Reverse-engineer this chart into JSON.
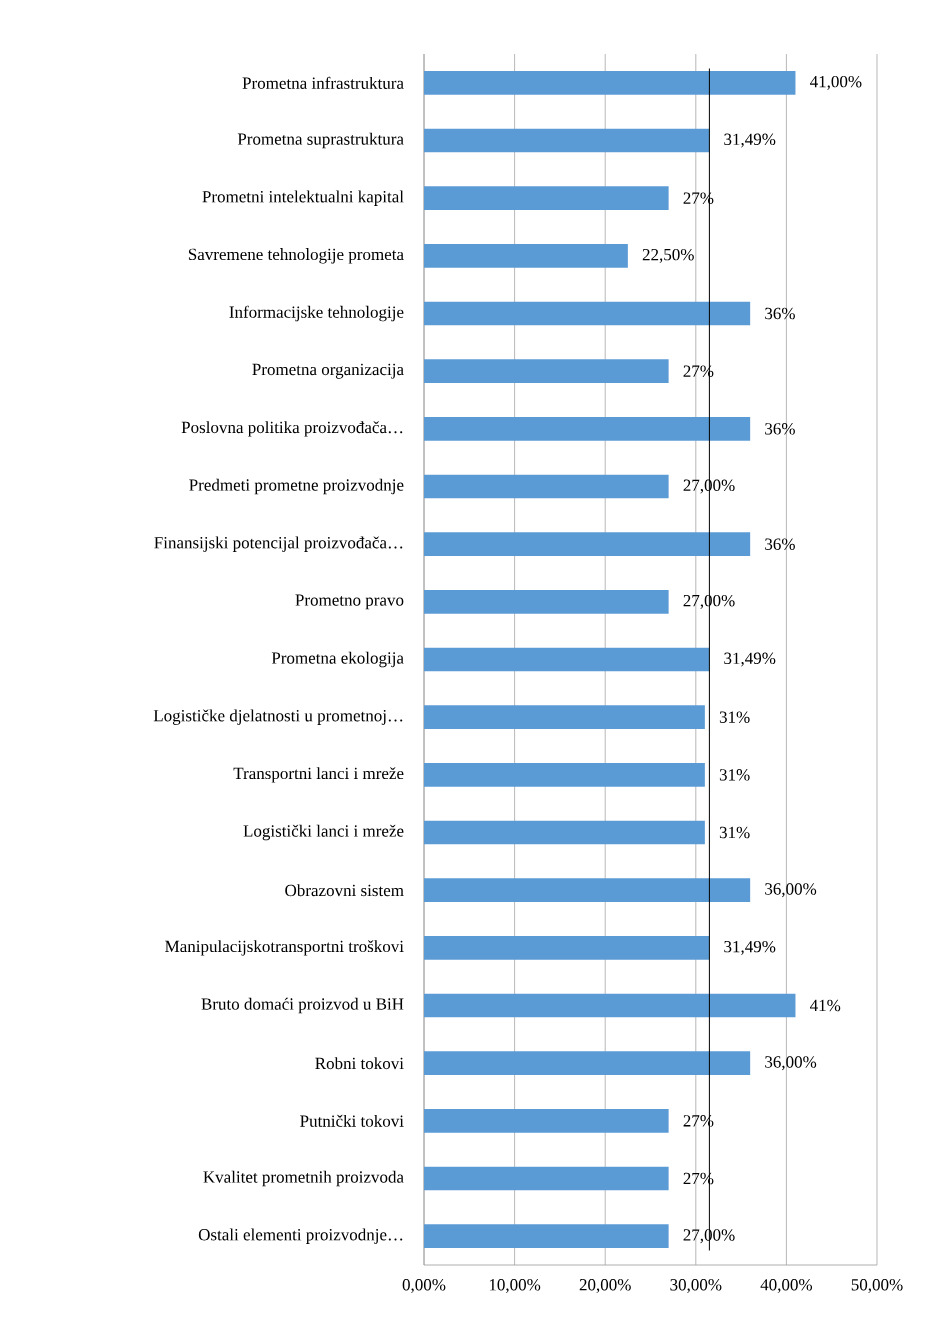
{
  "chart_data": {
    "type": "bar",
    "orientation": "horizontal",
    "categories": [
      "Prometna infrastruktura",
      "Prometna suprastruktura",
      "Prometni intelektualni kapital",
      "Savremene tehnologije prometa",
      "Informacijske tehnologije",
      "Prometna organizacija",
      "Poslovna politika proizvođača…",
      "Predmeti prometne proizvodnje",
      "Finansijski potencijal proizvođača…",
      "Prometno pravo",
      "Prometna ekologija",
      "Logističke djelatnosti u prometnoj…",
      "Transportni lanci i mreže",
      "Logistički lanci i mreže",
      "Obrazovni sistem",
      "Manipulacijskotransportni troškovi",
      "Bruto domaći proizvod u BiH",
      "Robni tokovi",
      "Putnički tokovi",
      "Kvalitet prometnih proizvoda",
      "Ostali elementi proizvodnje…"
    ],
    "values": [
      41,
      31.49,
      27,
      22.5,
      36,
      27,
      36,
      27,
      36,
      27,
      31.49,
      31,
      31,
      31,
      36,
      31.49,
      41,
      36,
      27,
      27,
      27
    ],
    "value_labels": [
      "41,00%",
      "31,49%",
      "27%",
      "22,50%",
      "36%",
      "27%",
      "36%",
      "27,00%",
      "36%",
      "27,00%",
      "31,49%",
      "31%",
      "31%",
      "31%",
      "36,00%",
      "31,49%",
      "41%",
      "36,00%",
      "27%",
      "27%",
      "27,00%"
    ],
    "color": "#5b9bd5",
    "xlim": [
      0,
      50
    ],
    "xticks": [
      {
        "value": 0,
        "label": "0,00%"
      },
      {
        "value": 10,
        "label": "10,00%"
      },
      {
        "value": 20,
        "label": "20,00%"
      },
      {
        "value": 30,
        "label": "30,00%"
      },
      {
        "value": 40,
        "label": "40,00%"
      },
      {
        "value": 50,
        "label": "50,00%"
      }
    ],
    "grid": "x",
    "ref_lines": [
      {
        "axis": "x",
        "value": 31.5,
        "color": "#000000"
      }
    ]
  }
}
